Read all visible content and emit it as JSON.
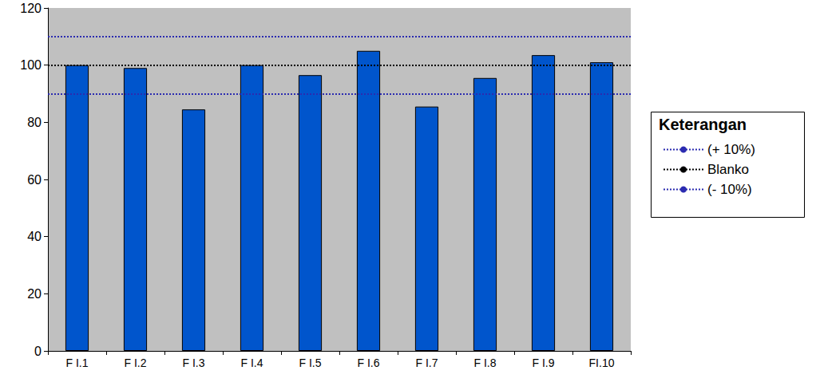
{
  "chart_data": {
    "type": "bar",
    "categories": [
      "F I.1",
      "F I.2",
      "F I.3",
      "F I.4",
      "F I.5",
      "F I.6",
      "F I.7",
      "F I.8",
      "F I.9",
      "FI.10"
    ],
    "values": [
      100,
      99,
      84.5,
      100,
      96.5,
      105,
      85.5,
      95.5,
      103.5,
      101
    ],
    "color": "#0055cc",
    "ylim": [
      0,
      120
    ],
    "yticks": [
      0,
      20,
      40,
      60,
      80,
      100,
      120
    ],
    "grid": false,
    "legend": "right",
    "legend_title": "Keterangan",
    "reference_lines": [
      {
        "name": "(+ 10%)",
        "value": 110,
        "color": "#2b2bb0",
        "line_style": "dotted"
      },
      {
        "name": "Blanko",
        "value": 100,
        "color": "#000000",
        "line_style": "dotted"
      },
      {
        "name": "(- 10%)",
        "value": 90,
        "color": "#2b2bb0",
        "line_style": "dotted"
      }
    ]
  }
}
